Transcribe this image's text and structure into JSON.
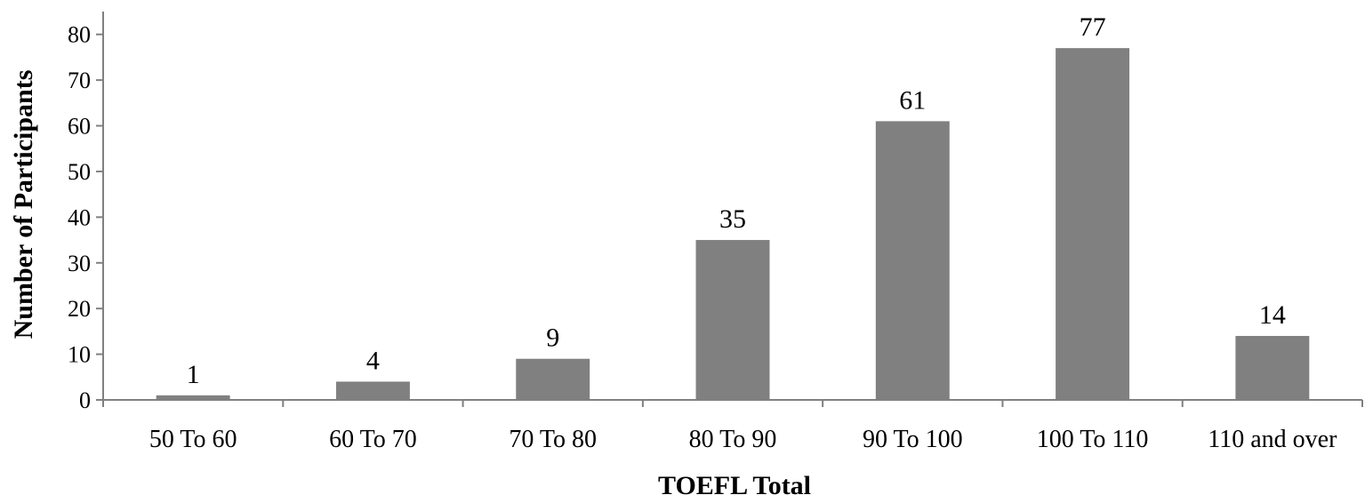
{
  "chart_data": {
    "type": "bar",
    "title": "",
    "xlabel": "TOEFL Total",
    "ylabel": "Number of Participants",
    "categories": [
      "50 To 60",
      "60 To 70",
      "70 To 80",
      "80 To 90",
      "90 To 100",
      "100 To 110",
      "110 and over"
    ],
    "values": [
      1,
      4,
      9,
      35,
      61,
      77,
      14
    ],
    "ylim": [
      0,
      85
    ],
    "yticks": [
      0,
      10,
      20,
      30,
      40,
      50,
      60,
      70,
      80
    ],
    "bar_color": "#808080",
    "data_labels": true,
    "grid": false,
    "legend": "none"
  }
}
